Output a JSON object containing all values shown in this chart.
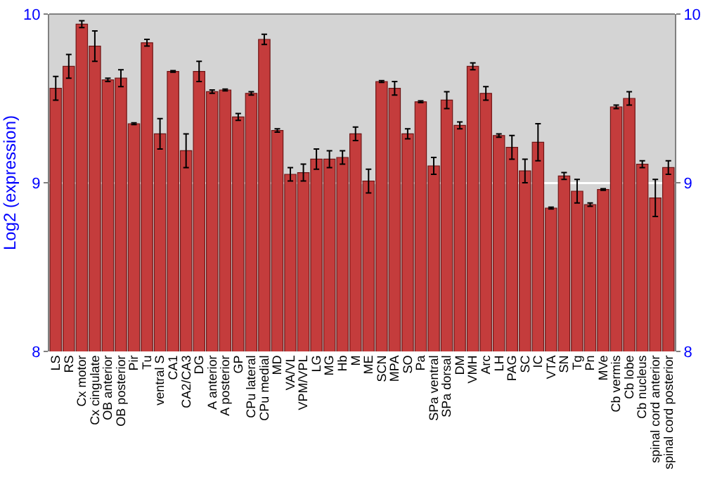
{
  "chart_data": {
    "type": "bar",
    "ylabel": "Log2 (expression)",
    "categories": [
      "LS",
      "RS",
      "Cx motor",
      "Cx cingulate",
      "OB anterior",
      "OB posterior",
      "Pir",
      "Tu",
      "ventral S",
      "CA1",
      "CA2/CA3",
      "DG",
      "A anterior",
      "A posterior",
      "GP",
      "CPu lateral",
      "CPu medial",
      "MD",
      "VA/VL",
      "VPM/VPL",
      "LG",
      "MG",
      "Hb",
      "M",
      "ME",
      "SCN",
      "MPA",
      "SO",
      "Pa",
      "SPa ventral",
      "SPa dorsal",
      "DM",
      "VMH",
      "Arc",
      "LH",
      "PAG",
      "SC",
      "IC",
      "VTA",
      "SN",
      "Tg",
      "Pn",
      "MVe",
      "Cb vermis",
      "Cb lobe",
      "Cb nucleus",
      "spinal cord anterior",
      "spinal cord posterior"
    ],
    "values": [
      9.56,
      9.69,
      9.94,
      9.81,
      9.61,
      9.62,
      9.35,
      9.83,
      9.29,
      9.66,
      9.19,
      9.66,
      9.54,
      9.55,
      9.39,
      9.53,
      9.85,
      9.31,
      9.05,
      9.06,
      9.14,
      9.14,
      9.15,
      9.29,
      9.01,
      9.6,
      9.56,
      9.29,
      9.48,
      9.1,
      9.49,
      9.34,
      9.69,
      9.53,
      9.28,
      9.21,
      9.07,
      9.24,
      8.85,
      9.04,
      8.95,
      8.87,
      8.96,
      9.45,
      9.5,
      9.11,
      8.91,
      9.09
    ],
    "errors": [
      0.07,
      0.07,
      0.02,
      0.09,
      0.01,
      0.05,
      0.005,
      0.02,
      0.09,
      0.005,
      0.1,
      0.06,
      0.01,
      0.005,
      0.02,
      0.01,
      0.03,
      0.01,
      0.04,
      0.05,
      0.06,
      0.05,
      0.04,
      0.04,
      0.07,
      0.005,
      0.04,
      0.03,
      0.005,
      0.05,
      0.05,
      0.02,
      0.02,
      0.04,
      0.01,
      0.07,
      0.07,
      0.11,
      0.005,
      0.02,
      0.07,
      0.01,
      0.005,
      0.01,
      0.04,
      0.02,
      0.11,
      0.04
    ],
    "color": "#c43c3c",
    "ylim": [
      8,
      10
    ],
    "yticks": [
      8,
      9,
      10
    ],
    "y2lim": [
      8,
      10
    ],
    "y2ticks": [
      8,
      9,
      10
    ],
    "grid": "y"
  }
}
